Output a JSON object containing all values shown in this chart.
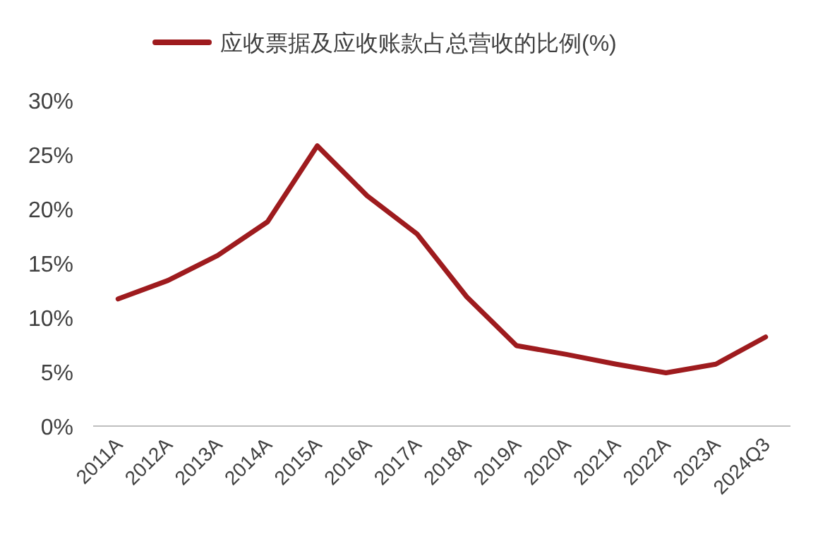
{
  "chart_data": {
    "type": "line",
    "categories": [
      "2011A",
      "2012A",
      "2013A",
      "2014A",
      "2015A",
      "2016A",
      "2017A",
      "2018A",
      "2019A",
      "2020A",
      "2021A",
      "2022A",
      "2023A",
      "2024Q3"
    ],
    "series": [
      {
        "name": "应收票据及应收账款占总营收的比例(%)",
        "color": "#9e1b1e",
        "values": [
          11.7,
          13.4,
          15.7,
          18.8,
          25.8,
          21.2,
          17.7,
          11.9,
          7.4,
          6.6,
          5.7,
          4.9,
          5.7,
          8.2
        ]
      }
    ],
    "ylim": [
      0,
      30
    ],
    "yticks": [
      {
        "value": 0,
        "label": "0%"
      },
      {
        "value": 5,
        "label": "5%"
      },
      {
        "value": 10,
        "label": "10%"
      },
      {
        "value": 15,
        "label": "15%"
      },
      {
        "value": 20,
        "label": "20%"
      },
      {
        "value": 25,
        "label": "25%"
      },
      {
        "value": 30,
        "label": "30%"
      }
    ],
    "grid": false,
    "legend": "top",
    "marker": "none",
    "line_style": "solid"
  }
}
